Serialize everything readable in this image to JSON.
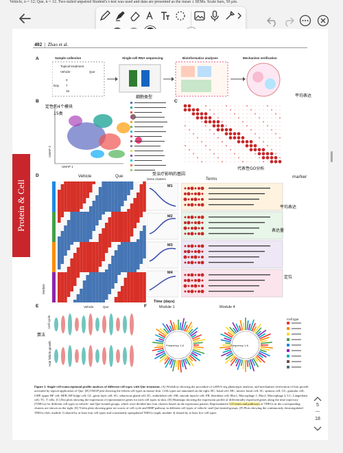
{
  "top_caption": "Vehicle, n = 12; Que, n = 12. Two-tailed unpaired Student's t-test was used and data are presented as the mean ± SEMs. Scale bars, 50 μm.",
  "toolbar": {
    "tools": [
      "pen-icon",
      "highlighter-icon",
      "eraser-icon",
      "lasso-icon",
      "text-icon",
      "shape-icon",
      "image-icon",
      "microphone-icon",
      "paint-icon"
    ],
    "more_label": ">",
    "colors": [
      "#555555",
      "#9a9a9a",
      "#111111"
    ],
    "selected_color": "#111111",
    "sizes": [
      "small",
      "medium",
      "large"
    ],
    "selected_size": "small"
  },
  "topbar": {
    "right_icons": [
      "undo-icon",
      "redo-icon",
      "more-icon",
      "close-icon"
    ]
  },
  "paper": {
    "page_number": "402",
    "author": "Zhao et al.",
    "spine_text": "Protein & Cell",
    "panel_labels": [
      "A",
      "B",
      "C",
      "D",
      "E",
      "F"
    ],
    "panel_a_steps": [
      "Sample collection",
      "Single-cell RNA sequencing",
      "Bioinformatics analyses",
      "Mechanism verification"
    ],
    "panel_a_sub": [
      "Topical treatment",
      "Vehicle",
      "Que",
      "Day",
      "0",
      "7",
      "15"
    ],
    "panel_b_axis": [
      "UMAP 1",
      "UMAP 2"
    ],
    "panel_d_headers": [
      "Vehicle",
      "Que",
      "Gene clusters",
      "Terms"
    ],
    "panel_d_modules": [
      "M1",
      "M2",
      "M3",
      "M4"
    ],
    "panel_d_axis": "Time (days)",
    "panel_d_side": "Module",
    "panel_e_legend": [
      "Vehicle",
      "Que"
    ],
    "panel_e_axes": [
      "Cell cycle",
      "Gene set score",
      "Hair follicle growth"
    ],
    "panel_f_modules": [
      "Module 1",
      "Module 4"
    ],
    "panel_f_center": [
      "Frequency 1-6",
      "Frequency 1-6"
    ],
    "panel_f_legend_title": "Cell type"
  },
  "handwriting": [
    "定性的4个模块",
    "15类",
    "细胞类型",
    "平均表达",
    "受治疗影响的基因",
    "marker",
    "平均表达",
    "定位",
    "代表性GO分析",
    "算法",
    "表达量"
  ],
  "caption": {
    "label": "Figure 2.",
    "title": "Single-cell transcriptional profile analyses of different cell types with Que treatment.",
    "body_1": "(A) Workflow showing the procedure of scRNA-seq phenotypic analysis, and mechanism verification of hair growth activated by topical application of Que. (B) UMAP plot showing the fifteen cell types in mouse skin. Cells types are annotated on the right. BC, basal cell; MC, mitotic basal cell; SC, spinous cell; GC, granular cell; UHF, upper HF cell; HFB, HF bulge cell; GL, germ layer cell; SG, sebaceous gland cell; EC, endothelial cell; SM, smooth muscle cell; FB, fibroblast cell; Mac1, Macrophage 1; Mac2, Macrophage 2; LC, Langerhans cell; TC, T cells. (C) Dot plots showing the expression of representative genes for each cell types in skin. (D) Heatmaps showing the expression profile of differentially expressed genes along the time trajectory (TDEGs) for different cell types in vehicle- and Que-treated groups, which were divided into four clusters based on the expression pattern. Representative",
    "highlight": "GO terms and pathways",
    "body_2": "of TDEGs in the corresponding clusters are shown on the right. (E) Violin plots showing gene set scores of cell cycle and BMP pathway in different cell types of vehicle- and Que-treated groups. (F) Plots showing the continuously downregulated TDEGs (left, module 1) shared by at least four cell types and consistently upregulated TDEGs (right, module 4) shared by at least five cell types."
  },
  "pager": {
    "current": "5",
    "total": "18"
  }
}
